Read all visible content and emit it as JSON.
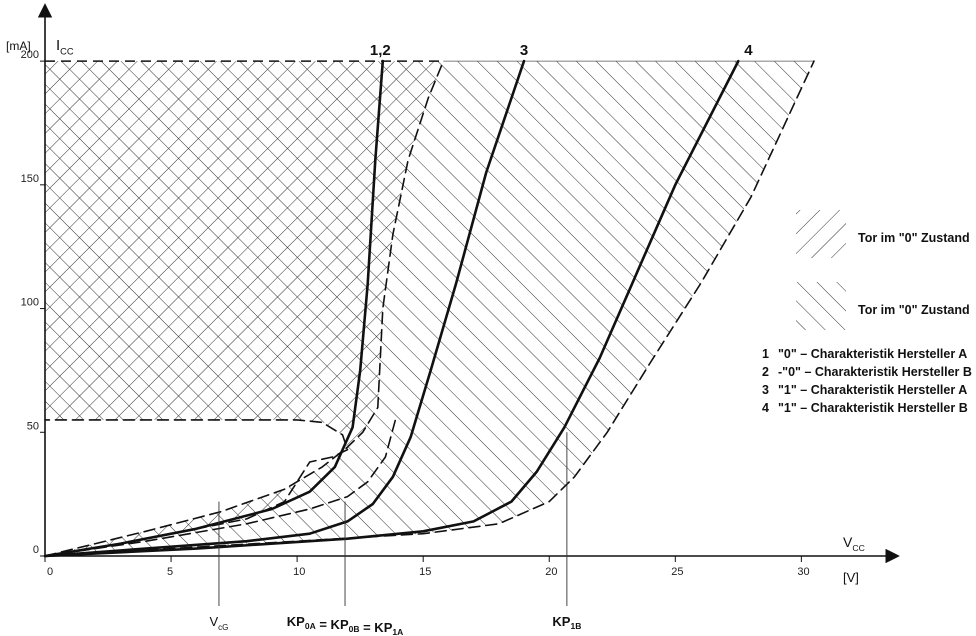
{
  "chart_data": {
    "type": "line",
    "ylabel_unit": "[mA]",
    "ylabel": "I",
    "ylabel_sub": "CC",
    "xlabel": "V",
    "xlabel_sub": "CC",
    "xlabel_unit": "[V]",
    "xlim": [
      0,
      33
    ],
    "ylim": [
      0,
      215
    ],
    "x_ticks": [
      "0",
      "5",
      "10",
      "15",
      "20",
      "25",
      "30"
    ],
    "x_tick_values": [
      0,
      5,
      10,
      15,
      20,
      25,
      30
    ],
    "y_ticks": [
      "0",
      "50",
      "100",
      "150",
      "200"
    ],
    "y_tick_values": [
      0,
      50,
      100,
      150,
      200
    ],
    "markers": [
      {
        "x": 6.9,
        "text": "V",
        "sub": "cG"
      },
      {
        "x": 11.9,
        "parts": [
          {
            "t": "KP",
            "s": "0A"
          },
          {
            "t": " = KP",
            "s": "0B"
          },
          {
            "t": " = KP",
            "s": "1A"
          }
        ]
      },
      {
        "x": 20.7,
        "parts": [
          {
            "t": "KP",
            "s": "1B"
          }
        ]
      }
    ],
    "series": [
      {
        "name": "1,2",
        "style": "solid",
        "points": [
          [
            0,
            0
          ],
          [
            3,
            5
          ],
          [
            6,
            11
          ],
          [
            9,
            19
          ],
          [
            10.5,
            26
          ],
          [
            11.5,
            36
          ],
          [
            12.2,
            52
          ],
          [
            12.5,
            75
          ],
          [
            12.8,
            110
          ],
          [
            13.1,
            160
          ],
          [
            13.4,
            200
          ]
        ]
      },
      {
        "name": "3",
        "style": "solid",
        "points": [
          [
            0,
            0
          ],
          [
            4,
            3
          ],
          [
            8,
            6
          ],
          [
            10.5,
            9
          ],
          [
            12,
            14
          ],
          [
            13,
            21
          ],
          [
            13.8,
            32
          ],
          [
            14.5,
            48
          ],
          [
            15.3,
            75
          ],
          [
            16.3,
            110
          ],
          [
            17.5,
            155
          ],
          [
            19,
            200
          ]
        ]
      },
      {
        "name": "4",
        "style": "solid",
        "points": [
          [
            0,
            0
          ],
          [
            6,
            3
          ],
          [
            12,
            7
          ],
          [
            15,
            10
          ],
          [
            17,
            14
          ],
          [
            18.5,
            22
          ],
          [
            19.5,
            34
          ],
          [
            20.6,
            52
          ],
          [
            22,
            80
          ],
          [
            23.5,
            115
          ],
          [
            25,
            150
          ],
          [
            27.5,
            200
          ]
        ]
      },
      {
        "name": "",
        "style": "dashed",
        "points": [
          [
            0,
            0
          ],
          [
            4,
            10
          ],
          [
            7,
            18
          ],
          [
            9.5,
            27
          ],
          [
            11,
            36
          ],
          [
            12,
            44
          ],
          [
            12.6,
            50
          ],
          [
            13.2,
            60
          ],
          [
            13.4,
            100
          ],
          [
            13.8,
            130
          ],
          [
            14.4,
            160
          ],
          [
            15.2,
            185
          ],
          [
            15.8,
            200
          ]
        ]
      },
      {
        "name": "",
        "style": "dashed",
        "points": [
          [
            0,
            0
          ],
          [
            5,
            3
          ],
          [
            10,
            6
          ],
          [
            15,
            9
          ],
          [
            18,
            13
          ],
          [
            20,
            22
          ],
          [
            21,
            32
          ],
          [
            22.3,
            50
          ],
          [
            24,
            78
          ],
          [
            26,
            110
          ],
          [
            28,
            145
          ],
          [
            30.5,
            200
          ]
        ]
      },
      {
        "name": "",
        "style": "dashed",
        "points": [
          [
            0,
            0
          ],
          [
            4,
            6
          ],
          [
            8,
            13
          ],
          [
            10.5,
            19
          ],
          [
            12,
            24
          ],
          [
            12.8,
            30
          ],
          [
            13.5,
            40
          ],
          [
            13.9,
            55
          ]
        ]
      },
      {
        "name": "",
        "style": "dashed",
        "points": [
          [
            0,
            0
          ],
          [
            3,
            5
          ],
          [
            6,
            11
          ],
          [
            8,
            15
          ],
          [
            9.5,
            22
          ],
          [
            10,
            30
          ],
          [
            10.5,
            38
          ],
          [
            11.4,
            40
          ],
          [
            12,
            43
          ],
          [
            11.8,
            49
          ],
          [
            11,
            54
          ],
          [
            10,
            55
          ],
          [
            0,
            55
          ]
        ]
      }
    ],
    "curve_labels": [
      {
        "text": "1,2",
        "x": 13.3
      },
      {
        "text": "3",
        "x": 19.0
      },
      {
        "text": "4",
        "x": 27.9
      }
    ],
    "legend": {
      "placement": "right",
      "hatch_items": [
        {
          "pattern": "backslash",
          "label": "Tor  im  \"0\"  Zustand"
        },
        {
          "pattern": "slash",
          "label": "Tor  im  \"0\"  Zustand"
        }
      ],
      "items": [
        {
          "num": "1",
          "label": "\"0\" – Charakteristik  Hersteller  A"
        },
        {
          "num": "2",
          "label": "-\"0\" – Charakteristik  Hersteller  B"
        },
        {
          "num": "3",
          "label": "\"1\" – Charakteristik  Hersteller  A"
        },
        {
          "num": "4",
          "label": "\"1\" – Charakteristik  Hersteller  B"
        }
      ]
    }
  }
}
